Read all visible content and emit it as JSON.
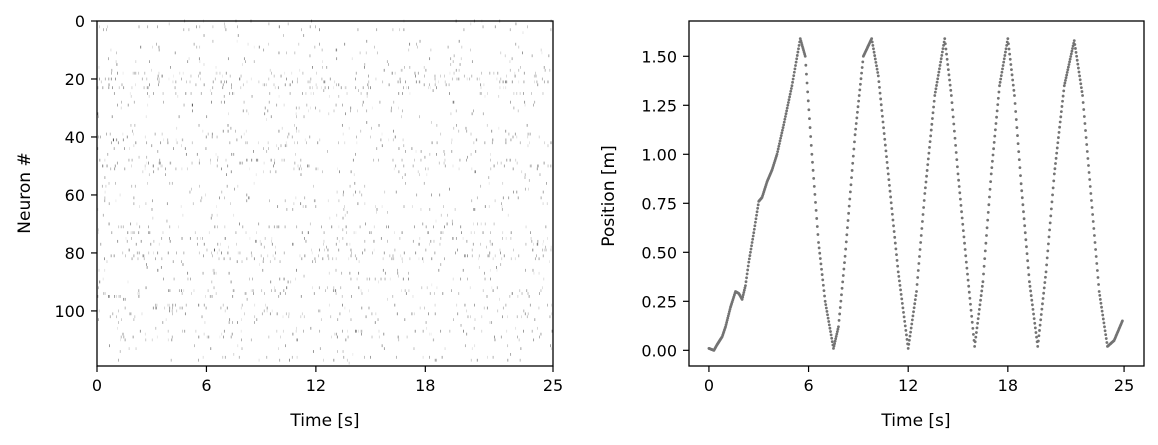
{
  "chart_data": [
    {
      "type": "raster",
      "xlabel": "Time [s]",
      "ylabel": "Neuron #",
      "xlim": [
        0,
        25
      ],
      "ylim": [
        119,
        0
      ],
      "x_ticks": [
        0,
        6,
        12,
        18,
        25
      ],
      "y_ticks": [
        0,
        20,
        40,
        60,
        80,
        100
      ],
      "grid": false,
      "y_inverted": true,
      "n_neurons": 119,
      "colors": {
        "spike": "#000000"
      },
      "note_on_values": "spike times not individually recoverable; rendered as a sparse raster with higher activity around neurons 20-24, 40, 50-55, 70-80 and 90-110"
    },
    {
      "type": "scatter",
      "xlabel": "Time [s]",
      "ylabel": "Position [m]",
      "xlim": [
        -1.2,
        26.2
      ],
      "ylim": [
        -0.08,
        1.68
      ],
      "x_ticks": [
        0,
        6,
        12,
        18,
        25
      ],
      "y_ticks": [
        "0.00",
        "0.25",
        "0.50",
        "0.75",
        "1.00",
        "1.25",
        "1.50"
      ],
      "grid": false,
      "colors": {
        "points": "#737373"
      },
      "series": [
        {
          "x": [
            0,
            0.3,
            0.5,
            0.8,
            1.0,
            1.3,
            1.6,
            1.8,
            2.0,
            2.2,
            2.4,
            2.7,
            3.0,
            3.2,
            3.5,
            3.8,
            4.1,
            4.5,
            5.0,
            5.5,
            5.8,
            6.2,
            6.6,
            7.0,
            7.5,
            7.8,
            8.2,
            8.8,
            9.3,
            9.8,
            10.2,
            10.8,
            11.4,
            12.0,
            12.5,
            13.0,
            13.6,
            14.2,
            14.6,
            15.0,
            15.5,
            16.0,
            16.5,
            17.0,
            17.5,
            18.0,
            18.4,
            18.8,
            19.3,
            19.8,
            20.3,
            20.8,
            21.4,
            22.0,
            22.5,
            23.0,
            23.5,
            24.0,
            24.4,
            24.9
          ],
          "y": [
            0.01,
            0.0,
            0.03,
            0.07,
            0.12,
            0.22,
            0.3,
            0.29,
            0.26,
            0.33,
            0.45,
            0.6,
            0.76,
            0.78,
            0.86,
            0.92,
            1.0,
            1.15,
            1.35,
            1.59,
            1.5,
            1.0,
            0.55,
            0.25,
            0.01,
            0.12,
            0.48,
            1.1,
            1.5,
            1.59,
            1.4,
            0.9,
            0.4,
            0.01,
            0.3,
            0.8,
            1.3,
            1.59,
            1.3,
            0.9,
            0.45,
            0.02,
            0.35,
            0.9,
            1.35,
            1.59,
            1.3,
            0.85,
            0.35,
            0.02,
            0.4,
            0.9,
            1.35,
            1.58,
            1.3,
            0.8,
            0.3,
            0.02,
            0.05,
            0.15
          ]
        }
      ]
    }
  ]
}
